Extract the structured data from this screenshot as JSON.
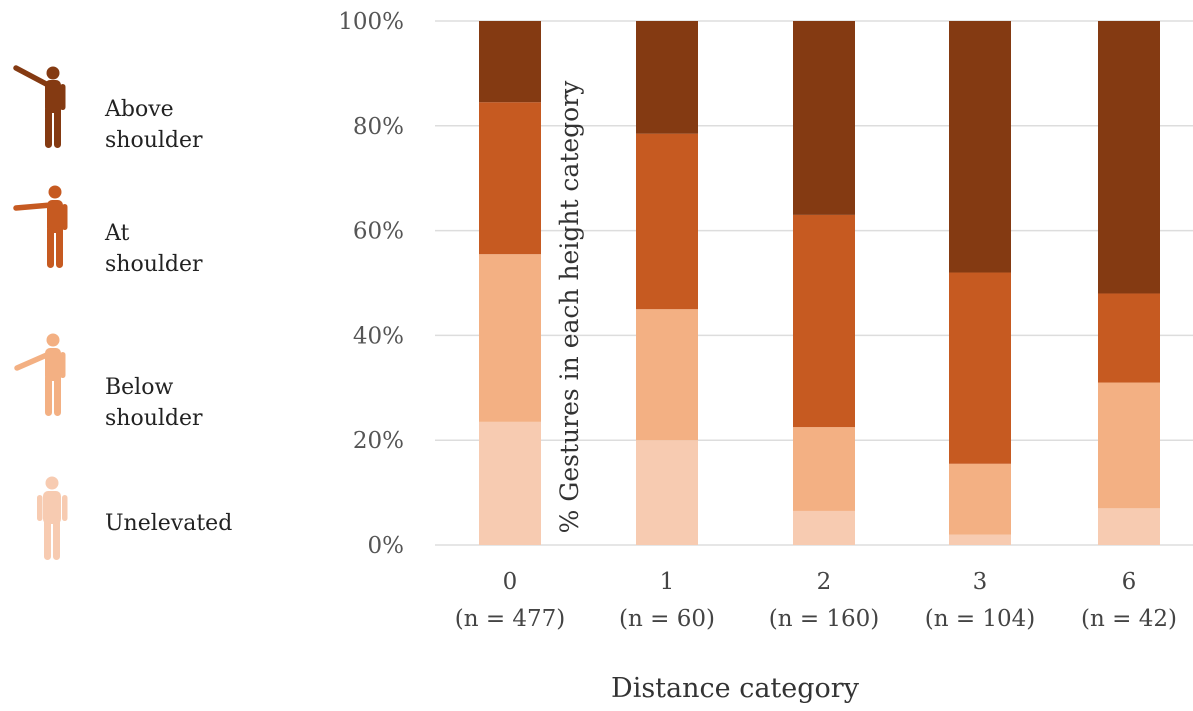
{
  "legend": {
    "items": [
      {
        "key": "above",
        "line1": "Above",
        "line2": "shoulder",
        "color": "#843a12",
        "icon": "person-arm-raised-above-shoulder-icon"
      },
      {
        "key": "at",
        "line1": "At",
        "line2": "shoulder",
        "color": "#c65a21",
        "icon": "person-arm-at-shoulder-icon"
      },
      {
        "key": "below",
        "line1": "Below",
        "line2": "shoulder",
        "color": "#f3b083",
        "icon": "person-arm-below-shoulder-icon"
      },
      {
        "key": "unelevated",
        "line1": "Unelevated",
        "line2": "",
        "color": "#f7cbb1",
        "icon": "person-arms-down-icon"
      }
    ]
  },
  "chart_data": {
    "type": "bar",
    "stacked": true,
    "categories": [
      "0",
      "1",
      "2",
      "3",
      "6"
    ],
    "category_counts": [
      "(n = 477)",
      "(n = 60)",
      "(n = 160)",
      "(n = 104)",
      "(n = 42)"
    ],
    "series": [
      {
        "name": "Unelevated",
        "color": "#f7cbb1",
        "values": [
          23.5,
          20,
          6.5,
          2,
          7
        ]
      },
      {
        "name": "Below shoulder",
        "color": "#f3b083",
        "values": [
          32,
          25,
          16,
          13.5,
          24
        ]
      },
      {
        "name": "At shoulder",
        "color": "#c65a21",
        "values": [
          29,
          33.5,
          40.5,
          36.5,
          17
        ]
      },
      {
        "name": "Above shoulder",
        "color": "#843a12",
        "values": [
          15.5,
          21.5,
          37,
          48,
          52
        ]
      }
    ],
    "xlabel": "Distance category",
    "ylabel": "% Gestures in each height category",
    "ylim": [
      0,
      100
    ],
    "yticks": [
      "0%",
      "20%",
      "40%",
      "60%",
      "80%",
      "100%"
    ],
    "ytick_values": [
      0,
      20,
      40,
      60,
      80,
      100
    ],
    "grid": "horizontal",
    "legend_position": "left"
  }
}
